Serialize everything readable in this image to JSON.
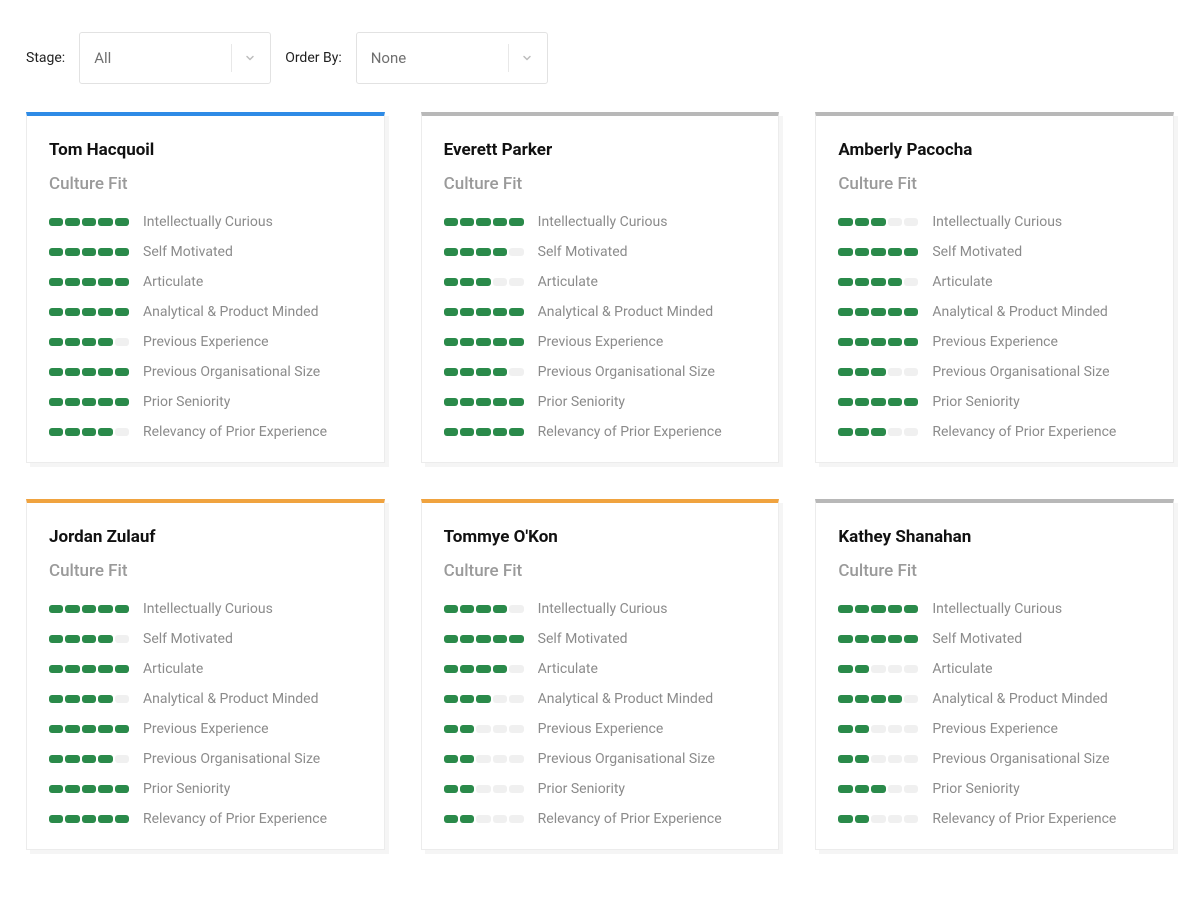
{
  "colors": {
    "fill": "#2a8a4a",
    "empty": "#f0f0f0",
    "accent_blue": "#2e8be6",
    "accent_orange": "#f0a33f",
    "accent_grey": "#b8b8b8"
  },
  "segments_per_bar": 5,
  "filters": {
    "stage_label": "Stage:",
    "stage_value": "All",
    "order_label": "Order By:",
    "order_value": "None"
  },
  "section_title": "Culture Fit",
  "traits": [
    "Intellectually Curious",
    "Self Motivated",
    "Articulate",
    "Analytical & Product Minded",
    "Previous Experience",
    "Previous Organisational Size",
    "Prior Seniority",
    "Relevancy of Prior Experience"
  ],
  "candidates": [
    {
      "name": "Tom Hacquoil",
      "accent": "accent_blue",
      "scores": [
        5,
        5,
        5,
        5,
        4,
        5,
        5,
        4
      ]
    },
    {
      "name": "Everett Parker",
      "accent": "accent_grey",
      "scores": [
        5,
        4,
        3,
        5,
        5,
        4,
        5,
        5
      ]
    },
    {
      "name": "Amberly Pacocha",
      "accent": "accent_grey",
      "scores": [
        3,
        5,
        4,
        5,
        5,
        3,
        5,
        3
      ]
    },
    {
      "name": "Jordan Zulauf",
      "accent": "accent_orange",
      "scores": [
        5,
        4,
        5,
        4,
        5,
        4,
        5,
        5
      ]
    },
    {
      "name": "Tommye O'Kon",
      "accent": "accent_orange",
      "scores": [
        4,
        5,
        4,
        3,
        2,
        2,
        2,
        2
      ]
    },
    {
      "name": "Kathey Shanahan",
      "accent": "accent_grey",
      "scores": [
        5,
        5,
        2,
        4,
        2,
        2,
        3,
        2
      ]
    }
  ]
}
